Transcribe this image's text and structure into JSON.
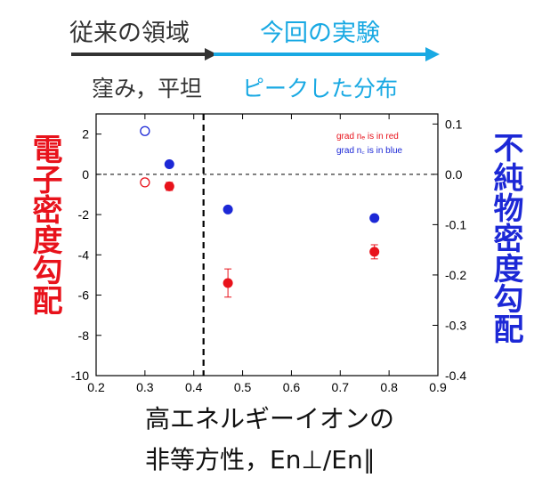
{
  "colors": {
    "red": "#e8121b",
    "blue": "#1c28d6",
    "cyan": "#19a9e3",
    "dark": "#333333",
    "axis": "#000000"
  },
  "header": {
    "left_label": "従来の領域",
    "right_label": "今回の実験",
    "left_sub": "窪み，平坦",
    "right_sub": "ピークした分布"
  },
  "chart_data": {
    "type": "scatter",
    "xlim": [
      0.2,
      0.9
    ],
    "ylim_left": [
      -10,
      3
    ],
    "ylim_right": [
      -0.4,
      0.12
    ],
    "x_ticks": [
      "0.2",
      "0.3",
      "0.4",
      "0.5",
      "0.6",
      "0.7",
      "0.8",
      "0.9"
    ],
    "y_left_ticks": [
      "2",
      "0",
      "-2",
      "-4",
      "-6",
      "-8",
      "-10"
    ],
    "y_right_ticks": [
      "0.1",
      "0.0",
      "-0.1",
      "-0.2",
      "-0.3",
      "-0.4"
    ],
    "ylabel_left": "電子密度勾配",
    "ylabel_right": "不純物密度勾配",
    "xlabel_line1": "高エネルギーイオンの",
    "xlabel_line2": "非等方性，En⊥/En∥",
    "legend_red": "grad nₑ is in red",
    "legend_blue": "grad n꜀ is in blue",
    "vline_x": 0.42,
    "hline_y": 0,
    "series": [
      {
        "axis": "left",
        "color": "red",
        "points": [
          {
            "x": 0.3,
            "y": -0.4,
            "open": true,
            "err": 0
          },
          {
            "x": 0.35,
            "y": -0.6,
            "open": false,
            "err": 0.2
          },
          {
            "x": 0.47,
            "y": -5.4,
            "open": false,
            "err": 0.7
          },
          {
            "x": 0.77,
            "y": -3.85,
            "open": false,
            "err": 0.35
          }
        ]
      },
      {
        "axis": "right",
        "color": "blue",
        "points": [
          {
            "x": 0.3,
            "y": 0.086,
            "open": true,
            "err": 0
          },
          {
            "x": 0.35,
            "y": 0.02,
            "open": false,
            "err": 0
          },
          {
            "x": 0.47,
            "y": -0.07,
            "open": false,
            "err": 0
          },
          {
            "x": 0.77,
            "y": -0.087,
            "open": false,
            "err": 0
          }
        ]
      }
    ]
  }
}
